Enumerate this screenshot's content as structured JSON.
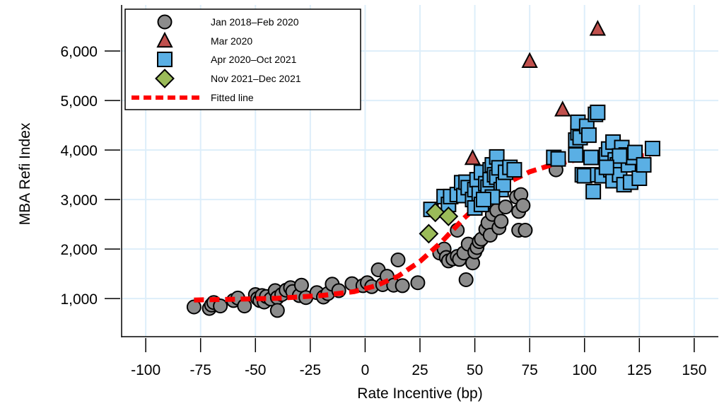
{
  "chart_data": {
    "type": "scatter",
    "title": "",
    "xlabel": "Rate Incentive (bp)",
    "ylabel": "MBA Refi Index",
    "xlim": [
      -111,
      161
    ],
    "ylim": [
      230,
      6930
    ],
    "xticks": [
      -100,
      -75,
      -50,
      -25,
      0,
      25,
      50,
      75,
      100,
      125,
      150
    ],
    "xtick_labels": [
      "-100",
      "-75",
      "-50",
      "-25",
      "0",
      "25",
      "50",
      "75",
      "100",
      "125",
      "150"
    ],
    "yticks": [
      1000,
      2000,
      3000,
      4000,
      5000,
      6000
    ],
    "ytick_labels": [
      "1,000",
      "2,000",
      "3,000",
      "4,000",
      "5,000",
      "6,000"
    ],
    "grid": true,
    "legend_position": "top-left",
    "series": [
      {
        "name": "Jan 2018–Feb 2020",
        "marker": "circle",
        "color": "#8c8c8c",
        "points": [
          [
            -78,
            830
          ],
          [
            -71,
            800
          ],
          [
            -70,
            870
          ],
          [
            -69,
            920
          ],
          [
            -66,
            850
          ],
          [
            -60,
            960
          ],
          [
            -58,
            1010
          ],
          [
            -55,
            850
          ],
          [
            -50,
            1080
          ],
          [
            -49,
            1000
          ],
          [
            -48,
            960
          ],
          [
            -47,
            1060
          ],
          [
            -46,
            930
          ],
          [
            -45,
            1040
          ],
          [
            -43,
            990
          ],
          [
            -41,
            1160
          ],
          [
            -40,
            1020
          ],
          [
            -40,
            760
          ],
          [
            -38,
            1080
          ],
          [
            -36,
            1170
          ],
          [
            -34,
            1220
          ],
          [
            -33,
            1140
          ],
          [
            -30,
            1060
          ],
          [
            -29,
            1270
          ],
          [
            -27,
            1020
          ],
          [
            -22,
            1120
          ],
          [
            -19,
            1030
          ],
          [
            -17,
            1100
          ],
          [
            -15,
            1290
          ],
          [
            -12,
            1160
          ],
          [
            -6,
            1300
          ],
          [
            -1,
            1260
          ],
          [
            1,
            1320
          ],
          [
            3,
            1240
          ],
          [
            6,
            1580
          ],
          [
            8,
            1280
          ],
          [
            10,
            1450
          ],
          [
            13,
            1270
          ],
          [
            15,
            1780
          ],
          [
            17,
            1260
          ],
          [
            24,
            1320
          ],
          [
            34,
            1920
          ],
          [
            36,
            2000
          ],
          [
            37,
            1830
          ],
          [
            38,
            1760
          ],
          [
            40,
            1800
          ],
          [
            42,
            1850
          ],
          [
            43,
            1790
          ],
          [
            45,
            1920
          ],
          [
            46,
            1380
          ],
          [
            42,
            2380
          ],
          [
            47,
            2100
          ],
          [
            49,
            1720
          ],
          [
            50,
            1940
          ],
          [
            51,
            2030
          ],
          [
            52,
            2150
          ],
          [
            53,
            2200
          ],
          [
            55,
            2400
          ],
          [
            56,
            2530
          ],
          [
            57,
            2280
          ],
          [
            58,
            2700
          ],
          [
            60,
            2780
          ],
          [
            61,
            2430
          ],
          [
            62,
            2560
          ],
          [
            64,
            2850
          ],
          [
            69,
            3050
          ],
          [
            70,
            2380
          ],
          [
            70,
            2760
          ],
          [
            71,
            3100
          ],
          [
            72,
            2880
          ],
          [
            73,
            2380
          ],
          [
            87,
            3600
          ]
        ]
      },
      {
        "name": "Mar 2020",
        "marker": "triangle",
        "color": "#c0504d",
        "points": [
          [
            49,
            3830
          ],
          [
            75,
            5790
          ],
          [
            90,
            4810
          ],
          [
            106,
            6440
          ]
        ]
      },
      {
        "name": "Apr 2020–Oct 2021",
        "marker": "square",
        "color": "#5aafe4",
        "points": [
          [
            30,
            2800
          ],
          [
            36,
            3060
          ],
          [
            38,
            2900
          ],
          [
            39,
            3060
          ],
          [
            42,
            3100
          ],
          [
            44,
            3340
          ],
          [
            45,
            3080
          ],
          [
            46,
            3350
          ],
          [
            47,
            3240
          ],
          [
            49,
            3000
          ],
          [
            50,
            2830
          ],
          [
            50,
            3200
          ],
          [
            51,
            3400
          ],
          [
            52,
            3120
          ],
          [
            53,
            2900
          ],
          [
            53,
            3550
          ],
          [
            55,
            3320
          ],
          [
            56,
            3250
          ],
          [
            57,
            3600
          ],
          [
            57,
            3400
          ],
          [
            58,
            3700
          ],
          [
            59,
            3500
          ],
          [
            60,
            3450
          ],
          [
            60,
            3860
          ],
          [
            61,
            3640
          ],
          [
            62,
            3200
          ],
          [
            63,
            3300
          ],
          [
            64,
            3550
          ],
          [
            66,
            3650
          ],
          [
            68,
            3600
          ],
          [
            58,
            3050
          ],
          [
            54,
            3000
          ],
          [
            86,
            3850
          ],
          [
            88,
            3820
          ],
          [
            96,
            4200
          ],
          [
            96,
            3900
          ],
          [
            97,
            4350
          ],
          [
            97,
            4560
          ],
          [
            98,
            4250
          ],
          [
            99,
            3500
          ],
          [
            100,
            3480
          ],
          [
            101,
            4480
          ],
          [
            102,
            4300
          ],
          [
            103,
            3850
          ],
          [
            105,
            4720
          ],
          [
            106,
            4760
          ],
          [
            104,
            3160
          ],
          [
            106,
            3500
          ],
          [
            108,
            3480
          ],
          [
            110,
            3900
          ],
          [
            111,
            4020
          ],
          [
            112,
            3600
          ],
          [
            113,
            3380
          ],
          [
            113,
            4160
          ],
          [
            114,
            3800
          ],
          [
            115,
            3700
          ],
          [
            116,
            3500
          ],
          [
            117,
            4050
          ],
          [
            118,
            3300
          ],
          [
            119,
            3900
          ],
          [
            120,
            3700
          ],
          [
            121,
            3350
          ],
          [
            122,
            3850
          ],
          [
            123,
            3950
          ],
          [
            125,
            3430
          ],
          [
            127,
            3700
          ],
          [
            131,
            4030
          ],
          [
            116,
            3880
          ],
          [
            110,
            3650
          ]
        ]
      },
      {
        "name": "Nov 2021–Dec 2021",
        "marker": "diamond",
        "color": "#9bbb59",
        "points": [
          [
            29,
            2310
          ],
          [
            32,
            2740
          ],
          [
            38,
            2660
          ]
        ]
      }
    ],
    "fitted_line": {
      "name": "Fitted line",
      "color": "#ff0000",
      "style": "dashed",
      "points": [
        [
          -78,
          970
        ],
        [
          -60,
          985
        ],
        [
          -40,
          1005
        ],
        [
          -20,
          1060
        ],
        [
          -5,
          1140
        ],
        [
          5,
          1260
        ],
        [
          15,
          1450
        ],
        [
          25,
          1750
        ],
        [
          35,
          2150
        ],
        [
          45,
          2620
        ],
        [
          55,
          3030
        ],
        [
          65,
          3340
        ],
        [
          75,
          3560
        ],
        [
          85,
          3700
        ],
        [
          95,
          3790
        ],
        [
          105,
          3840
        ],
        [
          115,
          3870
        ],
        [
          130,
          3890
        ]
      ]
    }
  },
  "legend": {
    "items": [
      {
        "label": "Jan 2018–Feb 2020",
        "marker": "circle"
      },
      {
        "label": "Mar 2020",
        "marker": "triangle"
      },
      {
        "label": "Apr 2020–Oct 2021",
        "marker": "square"
      },
      {
        "label": "Nov 2021–Dec 2021",
        "marker": "diamond"
      },
      {
        "label": "Fitted line",
        "marker": "dashed-line"
      }
    ]
  },
  "colors": {
    "grid": "#ddeefa",
    "axis": "#000000",
    "marker_stroke": "#000000"
  }
}
